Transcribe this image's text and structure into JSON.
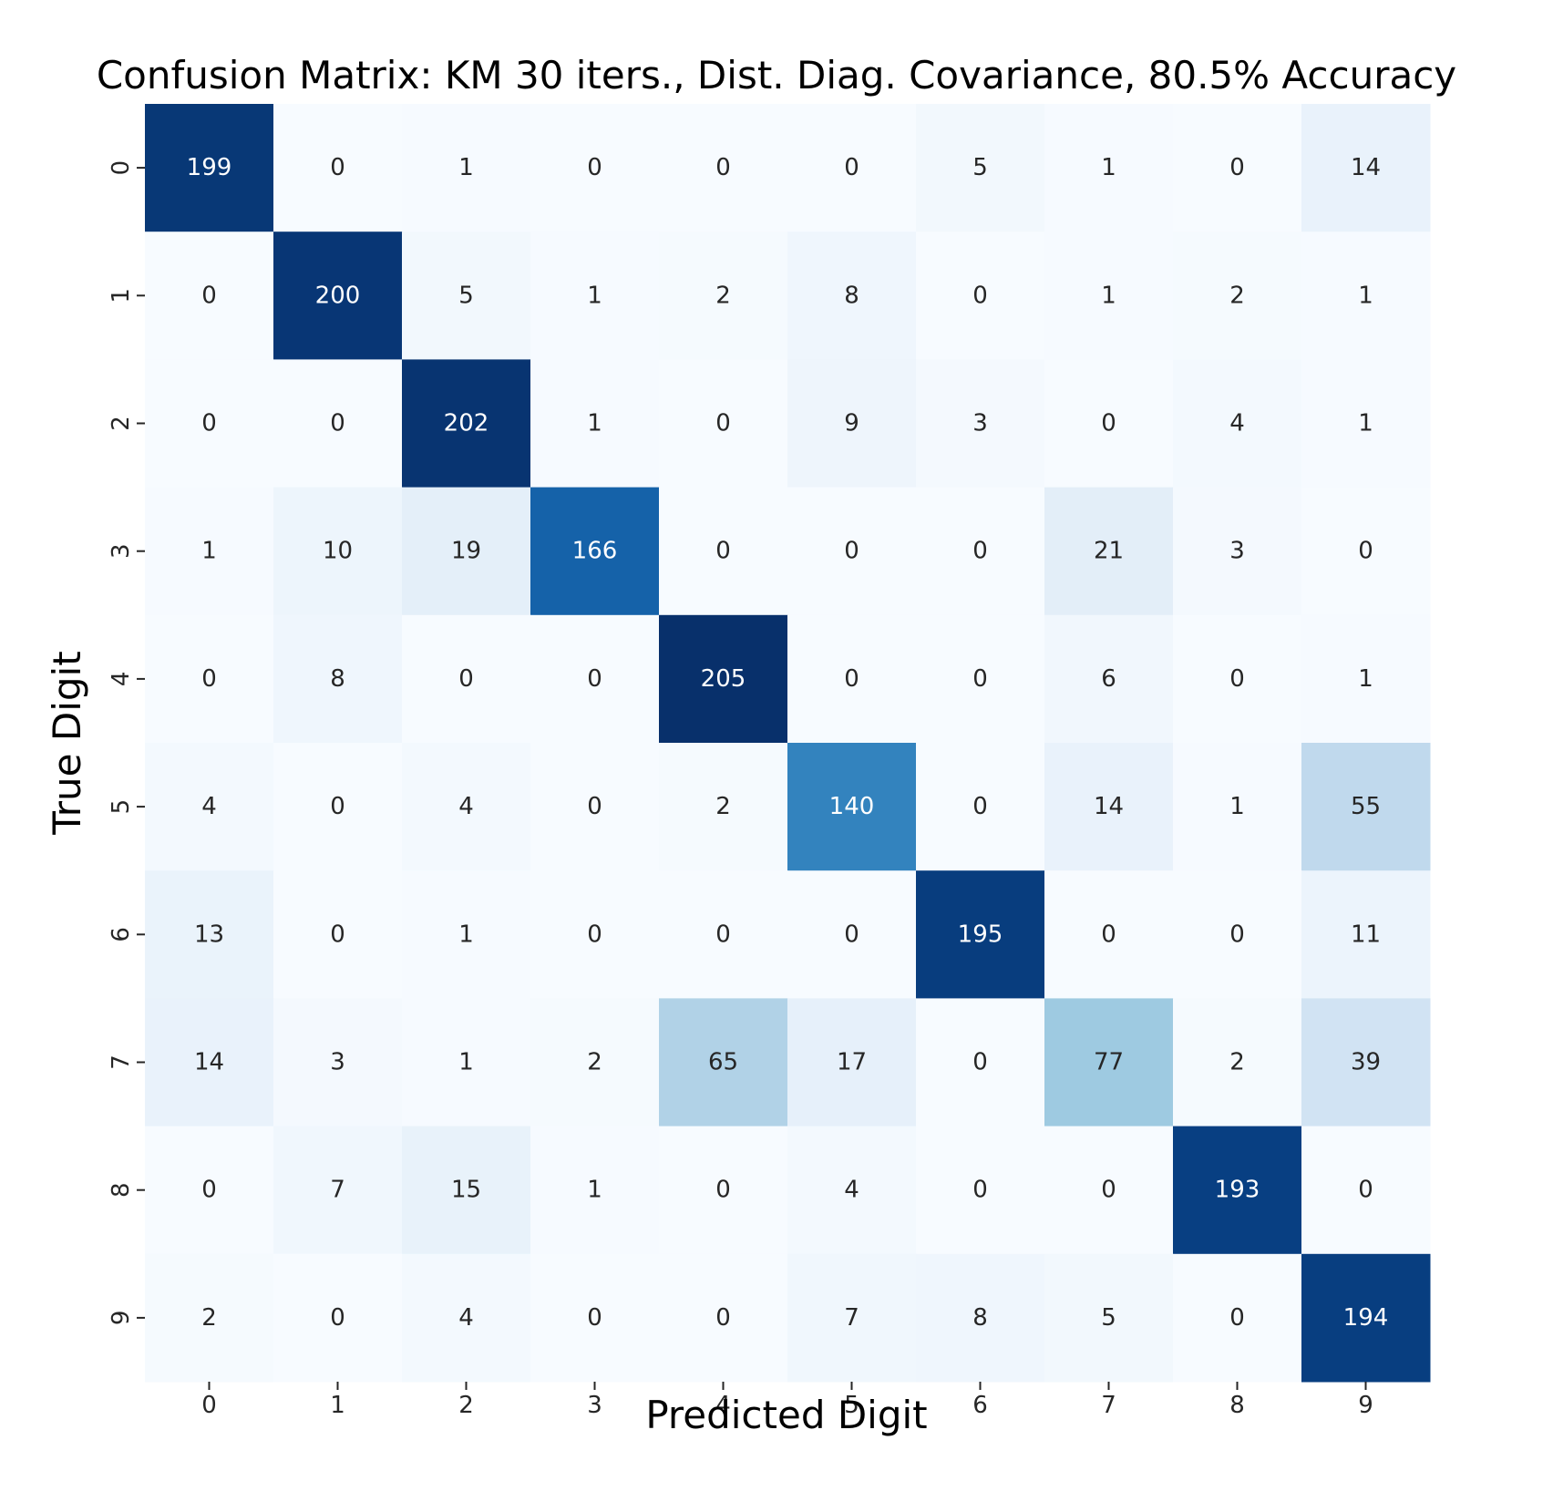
{
  "chart_data": {
    "type": "heatmap",
    "title": "Confusion Matrix: KM 30 iters., Dist. Diag. Covariance, 80.5% Accuracy",
    "xlabel": "Predicted Digit",
    "ylabel": "True Digit",
    "x_categories": [
      "0",
      "1",
      "2",
      "3",
      "4",
      "5",
      "6",
      "7",
      "8",
      "9"
    ],
    "y_categories": [
      "0",
      "1",
      "2",
      "3",
      "4",
      "5",
      "6",
      "7",
      "8",
      "9"
    ],
    "values": [
      [
        199,
        0,
        1,
        0,
        0,
        0,
        5,
        1,
        0,
        14
      ],
      [
        0,
        200,
        5,
        1,
        2,
        8,
        0,
        1,
        2,
        1
      ],
      [
        0,
        0,
        202,
        1,
        0,
        9,
        3,
        0,
        4,
        1
      ],
      [
        1,
        10,
        19,
        166,
        0,
        0,
        0,
        21,
        3,
        0
      ],
      [
        0,
        8,
        0,
        0,
        205,
        0,
        0,
        6,
        0,
        1
      ],
      [
        4,
        0,
        4,
        0,
        2,
        140,
        0,
        14,
        1,
        55
      ],
      [
        13,
        0,
        1,
        0,
        0,
        0,
        195,
        0,
        0,
        11
      ],
      [
        14,
        3,
        1,
        2,
        65,
        17,
        0,
        77,
        2,
        39
      ],
      [
        0,
        7,
        15,
        1,
        0,
        4,
        0,
        0,
        193,
        0
      ],
      [
        2,
        0,
        4,
        0,
        0,
        7,
        8,
        5,
        0,
        194
      ]
    ],
    "colormap": "Blues",
    "vmin": 0,
    "vmax": 205,
    "colorbar": false,
    "annotations": true
  }
}
